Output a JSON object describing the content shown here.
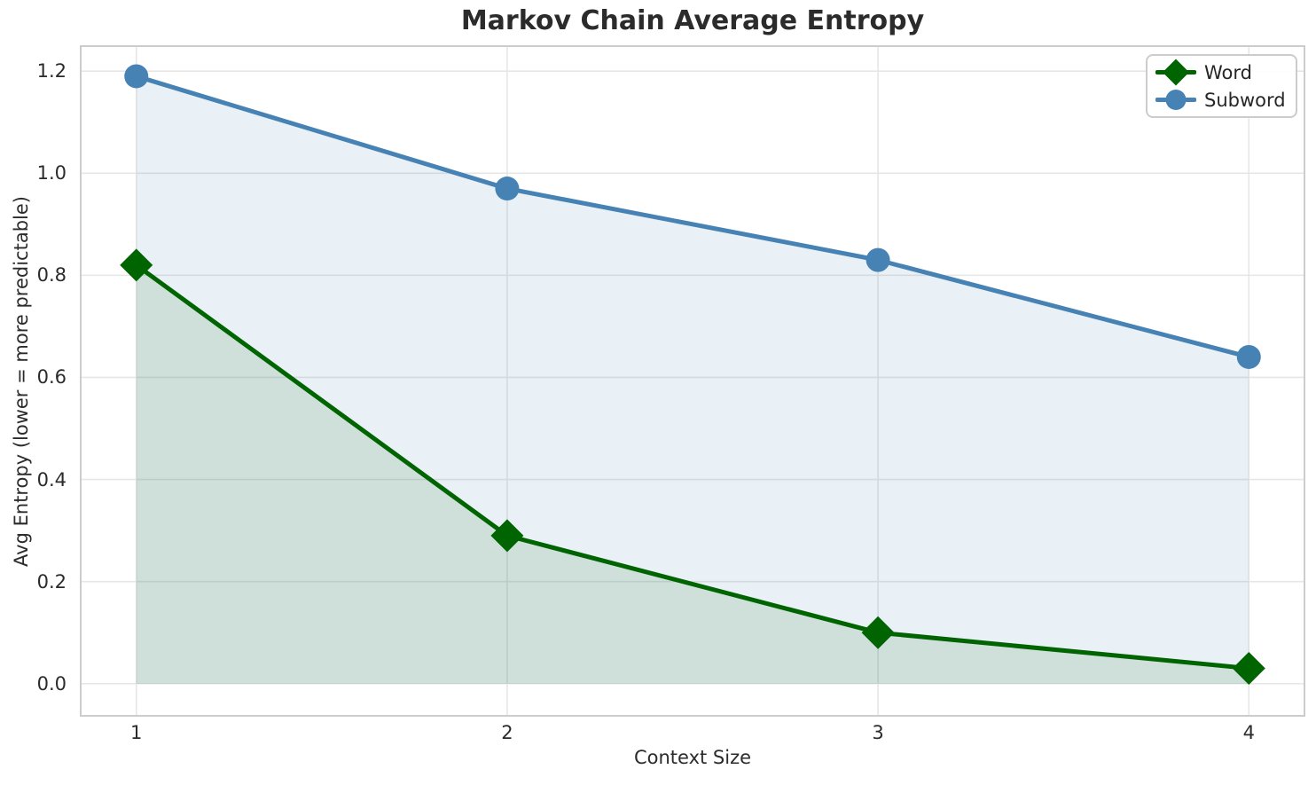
{
  "chart_data": {
    "type": "line",
    "title": "Markov Chain Average Entropy",
    "xlabel": "Context Size",
    "ylabel": "Avg Entropy (lower = more predictable)",
    "x": [
      1,
      2,
      3,
      4
    ],
    "series": [
      {
        "name": "Word",
        "color": "#006400",
        "marker": "diamond",
        "fill_to_zero": true,
        "fill_alpha": 0.11,
        "values": [
          0.82,
          0.29,
          0.1,
          0.03
        ]
      },
      {
        "name": "Subword",
        "color": "#4682B4",
        "marker": "circle",
        "fill_to_zero": true,
        "fill_alpha": 0.12,
        "values": [
          1.19,
          0.97,
          0.83,
          0.64
        ]
      }
    ],
    "xlim": [
      0.85,
      4.15
    ],
    "ylim": [
      -0.063,
      1.249
    ],
    "xticks": [
      1,
      2,
      3,
      4
    ],
    "xtick_labels": [
      "1",
      "2",
      "3",
      "4"
    ],
    "yticks": [
      0.0,
      0.2,
      0.4,
      0.6,
      0.8,
      1.0,
      1.2
    ],
    "ytick_labels": [
      "0.0",
      "0.2",
      "0.4",
      "0.6",
      "0.8",
      "1.0",
      "1.2"
    ],
    "grid": true,
    "legend_position": "upper right",
    "colors": {
      "grid": "#e6e6e6",
      "spine": "#cccccc",
      "text": "#2b2b2b",
      "background": "#ffffff"
    }
  }
}
